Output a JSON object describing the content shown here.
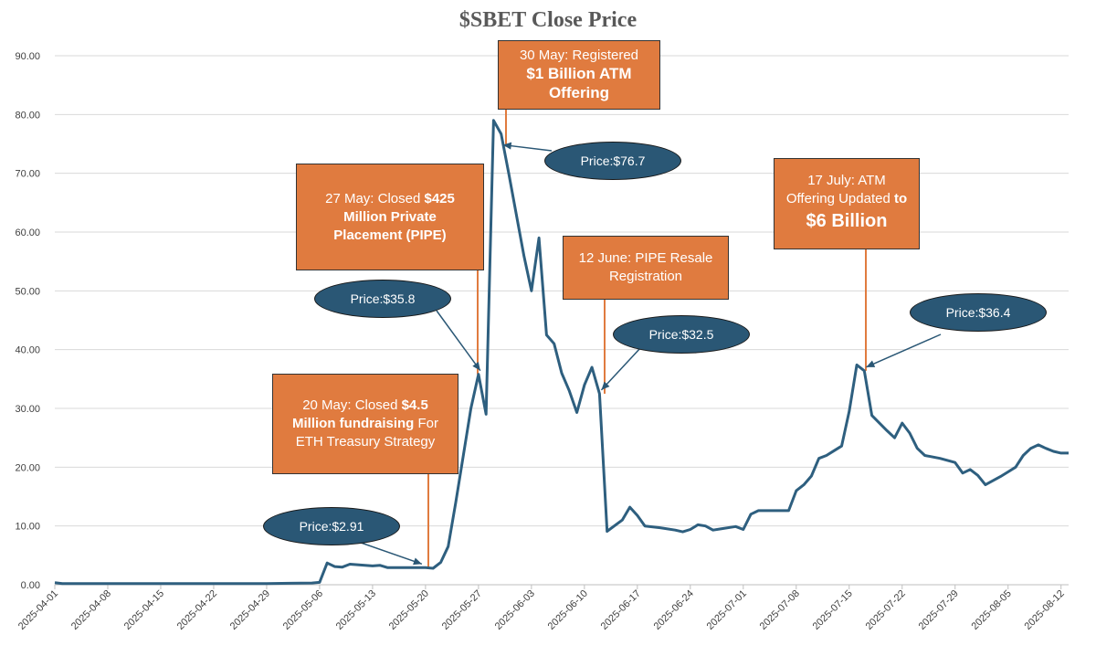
{
  "chart_data": {
    "type": "line",
    "title": "$SBET Close Price",
    "xlabel": "",
    "ylabel": "",
    "ylim": [
      0,
      90
    ],
    "y_ticks": [
      "0.00",
      "10.00",
      "20.00",
      "30.00",
      "40.00",
      "50.00",
      "60.00",
      "70.00",
      "80.00",
      "90.00"
    ],
    "x_ticks": [
      "2025-04-01",
      "2025-04-08",
      "2025-04-15",
      "2025-04-22",
      "2025-04-29",
      "2025-05-06",
      "2025-05-13",
      "2025-05-20",
      "2025-05-27",
      "2025-06-03",
      "2025-06-10",
      "2025-06-17",
      "2025-06-24",
      "2025-07-01",
      "2025-07-08",
      "2025-07-15",
      "2025-07-22",
      "2025-07-29",
      "2025-08-05",
      "2025-08-12"
    ],
    "grid": true,
    "legend": "none",
    "color": "#2e5f7f",
    "points": [
      [
        "2025-04-01",
        0.35
      ],
      [
        "2025-04-02",
        0.2
      ],
      [
        "2025-04-08",
        0.2
      ],
      [
        "2025-04-15",
        0.2
      ],
      [
        "2025-04-22",
        0.2
      ],
      [
        "2025-04-29",
        0.2
      ],
      [
        "2025-05-02",
        0.25
      ],
      [
        "2025-05-05",
        0.3
      ],
      [
        "2025-05-06",
        0.4
      ],
      [
        "2025-05-07",
        3.7
      ],
      [
        "2025-05-08",
        3.1
      ],
      [
        "2025-05-09",
        3.0
      ],
      [
        "2025-05-10",
        3.5
      ],
      [
        "2025-05-12",
        3.3
      ],
      [
        "2025-05-13",
        3.2
      ],
      [
        "2025-05-14",
        3.3
      ],
      [
        "2025-05-15",
        2.9
      ],
      [
        "2025-05-16",
        2.9
      ],
      [
        "2025-05-19",
        2.9
      ],
      [
        "2025-05-20",
        2.91
      ],
      [
        "2025-05-21",
        2.8
      ],
      [
        "2025-05-22",
        3.8
      ],
      [
        "2025-05-23",
        6.5
      ],
      [
        "2025-05-24",
        14.0
      ],
      [
        "2025-05-25",
        22.0
      ],
      [
        "2025-05-26",
        30.0
      ],
      [
        "2025-05-27",
        35.8
      ],
      [
        "2025-05-28",
        29.0
      ],
      [
        "2025-05-29",
        79.0
      ],
      [
        "2025-05-30",
        76.7
      ],
      [
        "2025-05-31",
        70.0
      ],
      [
        "2025-06-01",
        63.0
      ],
      [
        "2025-06-02",
        56.0
      ],
      [
        "2025-06-03",
        50.0
      ],
      [
        "2025-06-04",
        59.0
      ],
      [
        "2025-06-05",
        42.5
      ],
      [
        "2025-06-06",
        41.0
      ],
      [
        "2025-06-07",
        36.0
      ],
      [
        "2025-06-08",
        33.0
      ],
      [
        "2025-06-09",
        29.3
      ],
      [
        "2025-06-10",
        34.0
      ],
      [
        "2025-06-11",
        37.0
      ],
      [
        "2025-06-12",
        32.5
      ],
      [
        "2025-06-13",
        9.1
      ],
      [
        "2025-06-15",
        11.0
      ],
      [
        "2025-06-16",
        13.2
      ],
      [
        "2025-06-17",
        11.8
      ],
      [
        "2025-06-18",
        10.0
      ],
      [
        "2025-06-20",
        9.7
      ],
      [
        "2025-06-22",
        9.3
      ],
      [
        "2025-06-23",
        9.0
      ],
      [
        "2025-06-24",
        9.4
      ],
      [
        "2025-06-25",
        10.2
      ],
      [
        "2025-06-26",
        10.0
      ],
      [
        "2025-06-27",
        9.3
      ],
      [
        "2025-06-28",
        9.5
      ],
      [
        "2025-06-30",
        9.9
      ],
      [
        "2025-07-01",
        9.4
      ],
      [
        "2025-07-02",
        12.0
      ],
      [
        "2025-07-03",
        12.6
      ],
      [
        "2025-07-05",
        12.6
      ],
      [
        "2025-07-07",
        12.6
      ],
      [
        "2025-07-08",
        16.0
      ],
      [
        "2025-07-09",
        17.0
      ],
      [
        "2025-07-10",
        18.5
      ],
      [
        "2025-07-11",
        21.5
      ],
      [
        "2025-07-12",
        22.0
      ],
      [
        "2025-07-13",
        22.8
      ],
      [
        "2025-07-14",
        23.6
      ],
      [
        "2025-07-15",
        29.5
      ],
      [
        "2025-07-16",
        37.4
      ],
      [
        "2025-07-17",
        36.4
      ],
      [
        "2025-07-18",
        28.8
      ],
      [
        "2025-07-19",
        27.5
      ],
      [
        "2025-07-20",
        26.2
      ],
      [
        "2025-07-21",
        25.0
      ],
      [
        "2025-07-22",
        27.5
      ],
      [
        "2025-07-23",
        25.8
      ],
      [
        "2025-07-24",
        23.2
      ],
      [
        "2025-07-25",
        22.0
      ],
      [
        "2025-07-27",
        21.5
      ],
      [
        "2025-07-29",
        20.8
      ],
      [
        "2025-07-30",
        19.0
      ],
      [
        "2025-07-31",
        19.6
      ],
      [
        "2025-08-01",
        18.6
      ],
      [
        "2025-08-02",
        17.0
      ],
      [
        "2025-08-04",
        18.4
      ],
      [
        "2025-08-05",
        19.2
      ],
      [
        "2025-08-06",
        20.0
      ],
      [
        "2025-08-07",
        22.0
      ],
      [
        "2025-08-08",
        23.2
      ],
      [
        "2025-08-09",
        23.8
      ],
      [
        "2025-08-10",
        23.2
      ],
      [
        "2025-08-11",
        22.7
      ],
      [
        "2025-08-12",
        22.4
      ],
      [
        "2025-08-13",
        22.4
      ]
    ]
  },
  "annotations": [
    {
      "id": "may20",
      "date": "2025-05-20",
      "value": 2.91,
      "lines": [
        [
          {
            "t": "20 May: Closed "
          },
          {
            "t": "$4.5",
            "b": true
          }
        ],
        [
          {
            "t": "Million fundraising",
            "b": true
          },
          {
            "t": " For"
          }
        ],
        [
          {
            "t": "ETH Treasury Strategy"
          }
        ]
      ]
    },
    {
      "id": "may27",
      "date": "2025-05-27",
      "value": 35.8,
      "lines": [
        [
          {
            "t": "27 May: Closed "
          },
          {
            "t": "$425",
            "b": true
          }
        ],
        [
          {
            "t": "Million Private",
            "b": true
          }
        ],
        [
          {
            "t": "Placement  (PIPE)",
            "b": true
          }
        ]
      ]
    },
    {
      "id": "may30",
      "date": "2025-05-30",
      "value": 76.7,
      "lines": [
        [
          {
            "t": "30  May: Registered"
          }
        ],
        [
          {
            "t": "$1 Billion ATM",
            "b": true,
            "big": true
          }
        ],
        [
          {
            "t": "Offering",
            "b": true,
            "big": true
          }
        ]
      ]
    },
    {
      "id": "jun12",
      "date": "2025-06-12",
      "value": 32.5,
      "lines": [
        [
          {
            "t": "12  June: PIPE Resale"
          }
        ],
        [
          {
            "t": "Registration"
          }
        ]
      ]
    },
    {
      "id": "jul17",
      "date": "2025-07-17",
      "value": 36.4,
      "lines": [
        [
          {
            "t": "17 July: ATM"
          }
        ],
        [
          {
            "t": "Offering Updated "
          },
          {
            "t": "to",
            "b": true
          }
        ],
        [
          {
            "t": "$6 Billion",
            "b": true,
            "huge": true
          }
        ]
      ]
    }
  ],
  "price_labels": [
    {
      "id": "p291",
      "text": "Price:$2.91",
      "date": "2025-05-20",
      "value": 2.91
    },
    {
      "id": "p358",
      "text": "Price:$35.8",
      "date": "2025-05-27",
      "value": 35.8
    },
    {
      "id": "p767",
      "text": "Price:$76.7",
      "date": "2025-05-30",
      "value": 76.7
    },
    {
      "id": "p325",
      "text": "Price:$32.5",
      "date": "2025-06-12",
      "value": 32.5
    },
    {
      "id": "p364",
      "text": "Price:$36.4",
      "date": "2025-07-17",
      "value": 36.4
    }
  ],
  "colors": {
    "series": "#2e5f7f",
    "box_fill": "#e07b3f",
    "box_leader": "#e07b3f",
    "oval_fill": "#2a5775"
  }
}
